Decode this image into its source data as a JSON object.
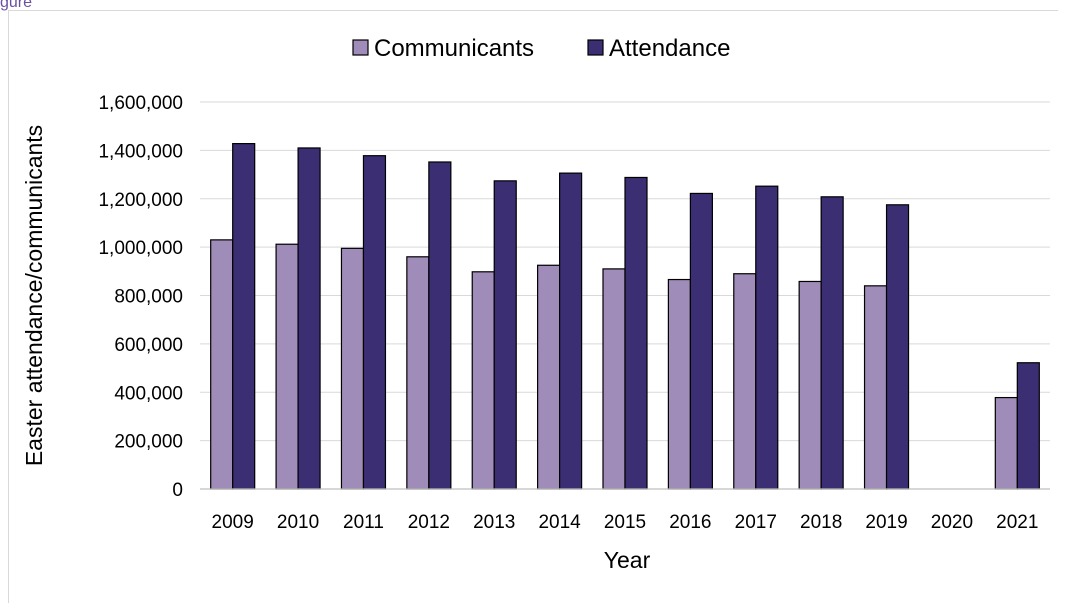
{
  "caption": {
    "text": "gure"
  },
  "chart_data": {
    "type": "bar",
    "title": "",
    "xlabel": "Year",
    "ylabel": "Easter attendance/communicants",
    "ylim": [
      0,
      1600000
    ],
    "yticks": [
      "0",
      "200,000",
      "400,000",
      "600,000",
      "800,000",
      "1,000,000",
      "1,200,000",
      "1,400,000",
      "1,600,000"
    ],
    "ytick_values": [
      0,
      200000,
      400000,
      600000,
      800000,
      1000000,
      1200000,
      1400000,
      1600000
    ],
    "grid": true,
    "legend_position": "top",
    "categories": [
      "2009",
      "2010",
      "2011",
      "2012",
      "2013",
      "2014",
      "2015",
      "2016",
      "2017",
      "2018",
      "2019",
      "2020",
      "2021"
    ],
    "series": [
      {
        "name": "Communicants",
        "color": "#a08cb8",
        "values": [
          1030000,
          1012000,
          995000,
          960000,
          898000,
          925000,
          910000,
          866000,
          890000,
          858000,
          840000,
          null,
          378000
        ]
      },
      {
        "name": "Attendance",
        "color": "#3b2e73",
        "values": [
          1428000,
          1410000,
          1378000,
          1352000,
          1274000,
          1306000,
          1288000,
          1222000,
          1252000,
          1208000,
          1175000,
          null,
          522000
        ]
      }
    ]
  }
}
